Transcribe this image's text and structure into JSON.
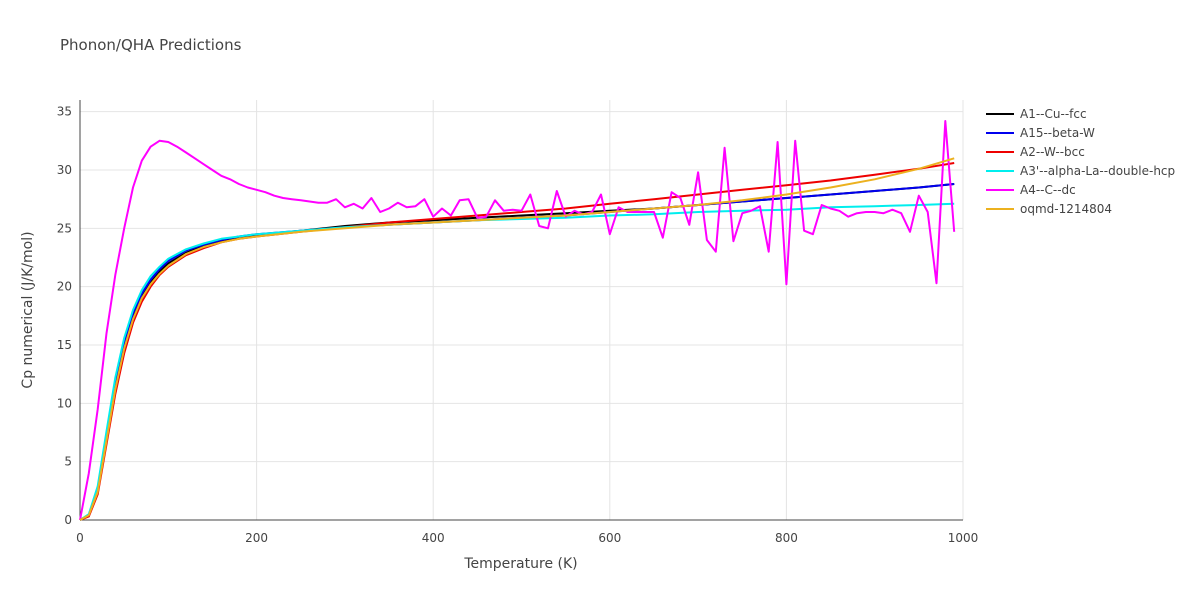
{
  "chart_data": {
    "type": "line",
    "title": "Phonon/QHA Predictions",
    "xlabel": "Temperature (K)",
    "ylabel": "Cp numerical (J/K/mol)",
    "xlim": [
      0,
      1000
    ],
    "ylim": [
      0,
      36
    ],
    "xticks": [
      0,
      200,
      400,
      600,
      800,
      1000
    ],
    "yticks": [
      0,
      5,
      10,
      15,
      20,
      25,
      30,
      35
    ],
    "grid": true,
    "legend_position": "right",
    "series": [
      {
        "name": "A1--Cu--fcc",
        "color": "#000000",
        "x": [
          0,
          10,
          20,
          30,
          40,
          50,
          60,
          70,
          80,
          90,
          100,
          120,
          140,
          160,
          180,
          200,
          250,
          300,
          350,
          400,
          450,
          500,
          550,
          600,
          650,
          700,
          750,
          800,
          850,
          900,
          950,
          990
        ],
        "y": [
          0,
          0.4,
          2.5,
          7,
          11.5,
          15,
          17.5,
          19.2,
          20.4,
          21.3,
          22,
          22.9,
          23.5,
          23.9,
          24.2,
          24.4,
          24.8,
          25.2,
          25.5,
          25.7,
          25.9,
          26.1,
          26.3,
          26.5,
          26.7,
          27,
          27.3,
          27.6,
          27.9,
          28.2,
          28.5,
          28.8
        ]
      },
      {
        "name": "A15--beta-W",
        "color": "#0000ee",
        "x": [
          0,
          10,
          20,
          30,
          40,
          50,
          60,
          70,
          80,
          90,
          100,
          120,
          140,
          160,
          180,
          200,
          250,
          300,
          350,
          400,
          450,
          500,
          550,
          600,
          650,
          700,
          750,
          800,
          850,
          900,
          950,
          990
        ],
        "y": [
          0,
          0.4,
          2.6,
          7.2,
          11.8,
          15.2,
          17.7,
          19.4,
          20.6,
          21.5,
          22.2,
          23.1,
          23.6,
          24,
          24.3,
          24.5,
          24.8,
          25.1,
          25.3,
          25.5,
          25.7,
          25.9,
          26.1,
          26.4,
          26.7,
          27,
          27.3,
          27.6,
          27.9,
          28.2,
          28.5,
          28.8
        ]
      },
      {
        "name": "A2--W--bcc",
        "color": "#ee0000",
        "x": [
          0,
          10,
          20,
          30,
          40,
          50,
          60,
          70,
          80,
          90,
          100,
          120,
          140,
          160,
          180,
          200,
          250,
          300,
          350,
          400,
          450,
          500,
          550,
          600,
          650,
          700,
          750,
          800,
          850,
          900,
          950,
          990
        ],
        "y": [
          0,
          0.3,
          2.2,
          6.5,
          10.8,
          14.3,
          16.9,
          18.7,
          20,
          21,
          21.7,
          22.7,
          23.3,
          23.8,
          24.1,
          24.3,
          24.7,
          25.1,
          25.5,
          25.8,
          26.1,
          26.4,
          26.7,
          27.1,
          27.5,
          27.9,
          28.3,
          28.7,
          29.1,
          29.6,
          30.1,
          30.6
        ]
      },
      {
        "name": "A3'--alpha-La--double-hcp",
        "color": "#00eeee",
        "x": [
          0,
          10,
          20,
          30,
          40,
          50,
          60,
          70,
          80,
          90,
          100,
          120,
          140,
          160,
          180,
          200,
          250,
          300,
          350,
          400,
          450,
          500,
          550,
          600,
          650,
          700,
          750,
          800,
          850,
          900,
          950,
          990
        ],
        "y": [
          0,
          0.5,
          2.9,
          7.6,
          12.2,
          15.6,
          18,
          19.7,
          20.9,
          21.7,
          22.4,
          23.2,
          23.7,
          24.1,
          24.3,
          24.5,
          24.8,
          25.1,
          25.3,
          25.5,
          25.7,
          25.8,
          25.9,
          26.1,
          26.2,
          26.4,
          26.5,
          26.6,
          26.8,
          26.9,
          27,
          27.1
        ]
      },
      {
        "name": "A4--C--dc",
        "color": "#ff00ff",
        "x": [
          0,
          10,
          20,
          30,
          40,
          50,
          60,
          70,
          80,
          90,
          100,
          110,
          120,
          130,
          140,
          150,
          160,
          170,
          180,
          190,
          200,
          210,
          220,
          230,
          240,
          250,
          260,
          270,
          280,
          290,
          300,
          310,
          320,
          330,
          340,
          350,
          360,
          370,
          380,
          390,
          400,
          410,
          420,
          430,
          440,
          450,
          460,
          470,
          480,
          490,
          500,
          510,
          520,
          530,
          540,
          550,
          560,
          570,
          580,
          590,
          600,
          610,
          620,
          630,
          640,
          650,
          660,
          670,
          680,
          690,
          700,
          710,
          720,
          730,
          740,
          750,
          760,
          770,
          780,
          790,
          800,
          810,
          820,
          830,
          840,
          850,
          860,
          870,
          880,
          890,
          900,
          910,
          920,
          930,
          940,
          950,
          960,
          970,
          980,
          990
        ],
        "y": [
          0,
          4,
          9.5,
          16,
          21,
          25,
          28.5,
          30.8,
          32,
          32.5,
          32.4,
          32,
          31.5,
          31,
          30.5,
          30,
          29.5,
          29.2,
          28.8,
          28.5,
          28.3,
          28.1,
          27.8,
          27.6,
          27.5,
          27.4,
          27.3,
          27.2,
          27.2,
          27.5,
          26.8,
          27.1,
          26.7,
          27.6,
          26.4,
          26.7,
          27.2,
          26.8,
          26.9,
          27.5,
          26,
          26.7,
          26.1,
          27.4,
          27.5,
          25.9,
          26,
          27.4,
          26.5,
          26.6,
          26.5,
          27.9,
          25.2,
          25,
          28.2,
          26,
          26.5,
          26.2,
          26.4,
          27.9,
          24.5,
          26.8,
          26.4,
          26.4,
          26.4,
          26.4,
          24.2,
          28.1,
          27.6,
          25.3,
          29.8,
          24,
          23,
          31.9,
          23.9,
          26.3,
          26.5,
          26.9,
          23,
          32.4,
          20.2,
          32.5,
          24.8,
          24.5,
          27,
          26.7,
          26.5,
          26,
          26.3,
          26.4,
          26.4,
          26.3,
          26.6,
          26.3,
          24.7,
          27.8,
          26.4,
          20.3,
          34.2,
          24.7
        ]
      },
      {
        "name": "oqmd-1214804",
        "color": "#ecb11f",
        "x": [
          0,
          10,
          20,
          30,
          40,
          50,
          60,
          70,
          80,
          90,
          100,
          120,
          140,
          160,
          180,
          200,
          250,
          300,
          350,
          400,
          450,
          500,
          550,
          600,
          650,
          700,
          750,
          800,
          850,
          900,
          950,
          990
        ],
        "y": [
          0,
          0.4,
          2.4,
          6.8,
          11.2,
          14.7,
          17.2,
          19,
          20.2,
          21.1,
          21.8,
          22.8,
          23.4,
          23.8,
          24.1,
          24.3,
          24.7,
          25,
          25.3,
          25.5,
          25.7,
          25.9,
          26.1,
          26.4,
          26.7,
          27,
          27.4,
          27.9,
          28.5,
          29.2,
          30.1,
          31
        ]
      }
    ]
  }
}
